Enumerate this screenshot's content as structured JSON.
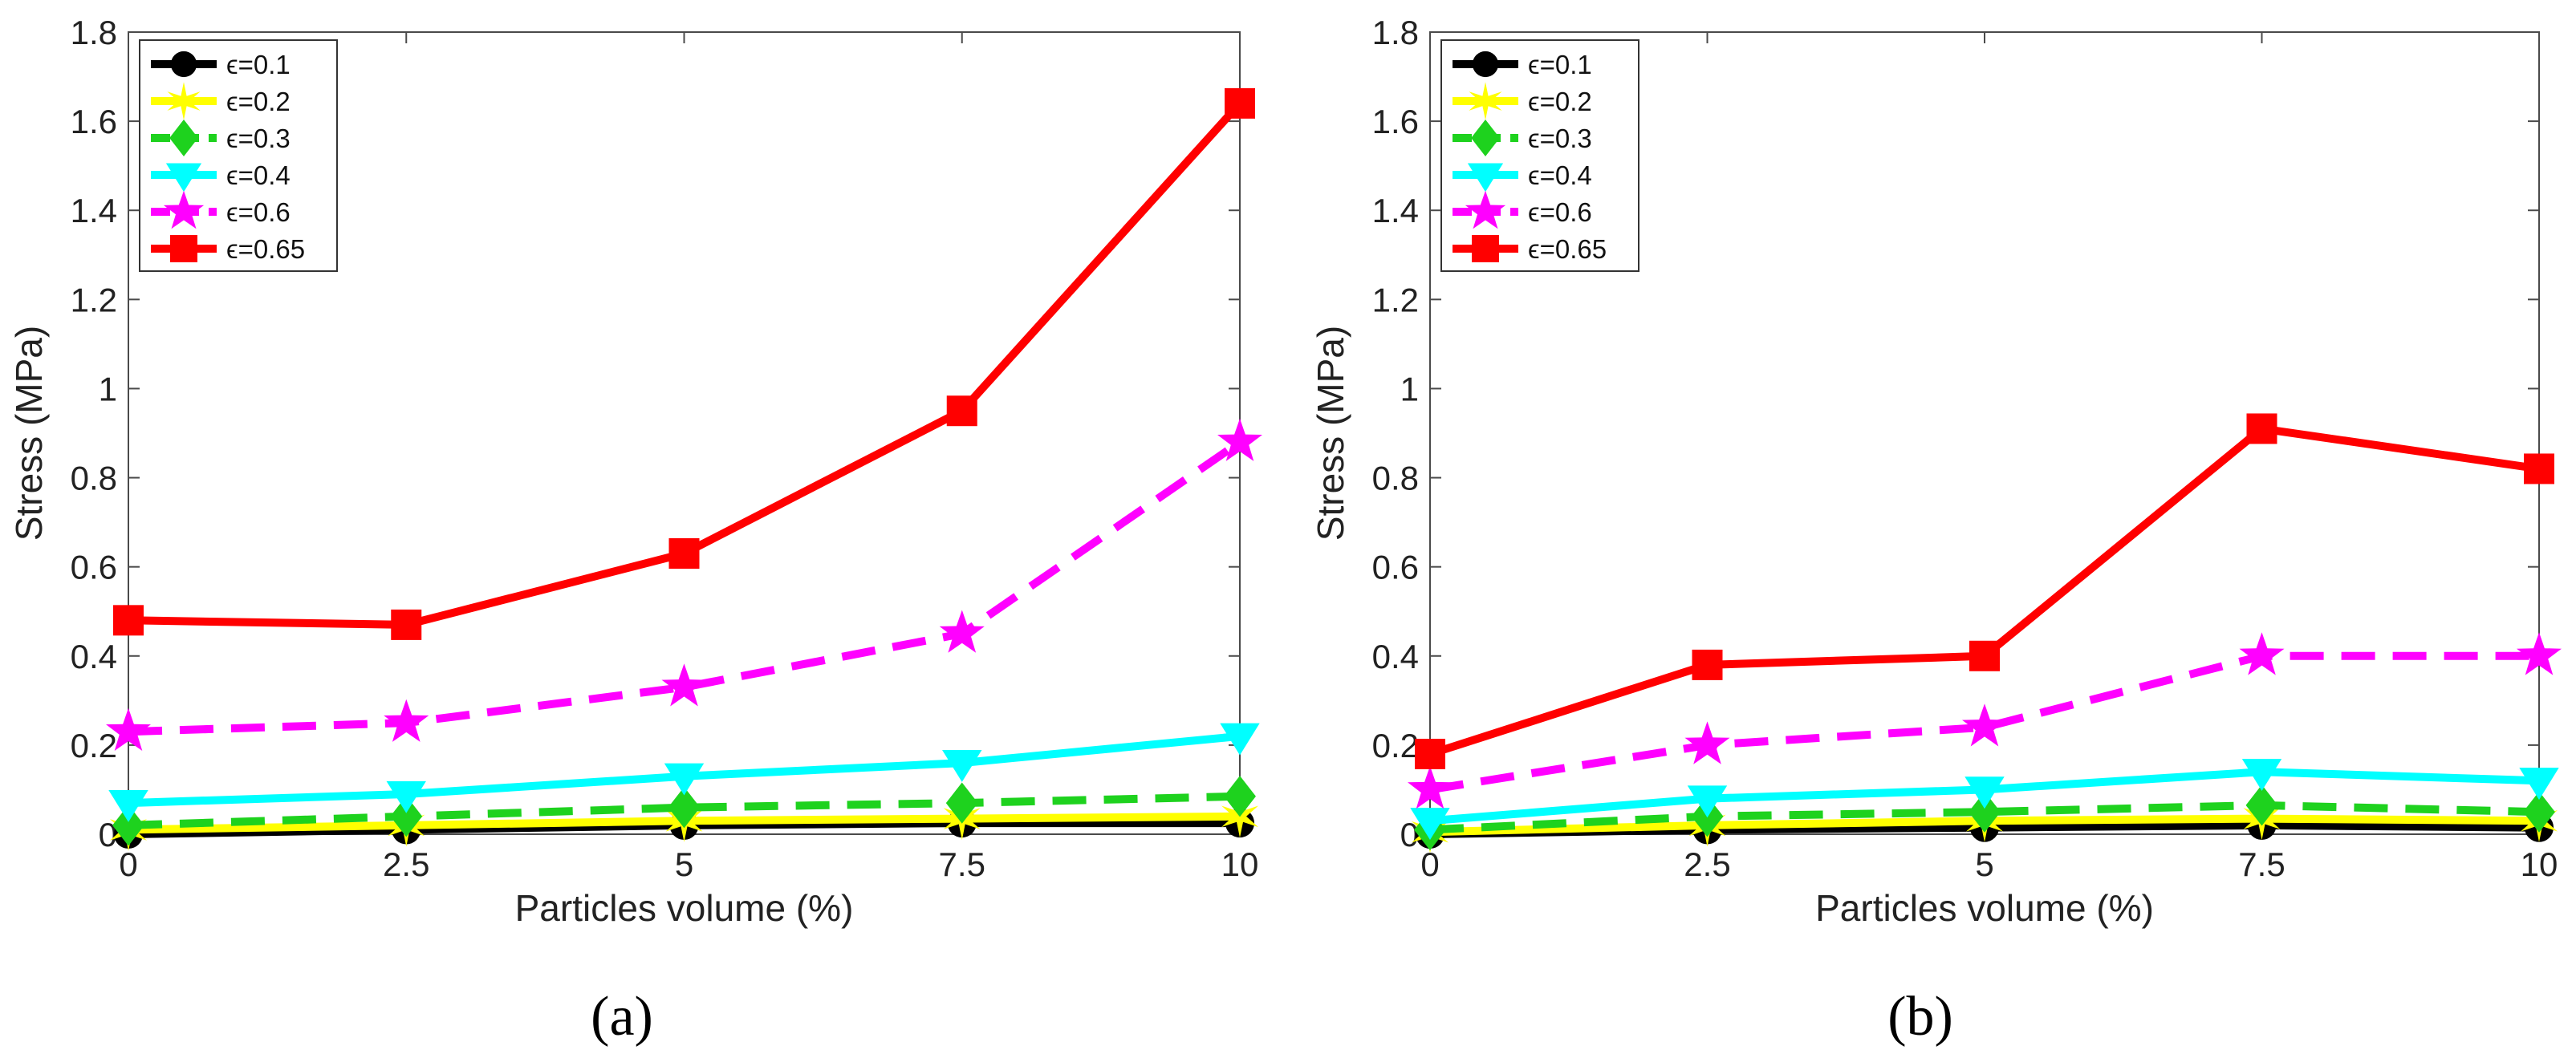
{
  "figure": {
    "captions": [
      "(a)",
      "(b)"
    ]
  },
  "colors": {
    "e01": "#000000",
    "e02": "#ffff00",
    "e03": "#1ed21e",
    "e04": "#00ffff",
    "e06": "#ff00ff",
    "e065": "#ff0000"
  },
  "chart_data": [
    {
      "type": "line",
      "panel": "a",
      "xlabel": "Particles volume (%)",
      "ylabel": "Stress (MPa)",
      "x": [
        0,
        2.5,
        5,
        7.5,
        10
      ],
      "xticks": [
        "0",
        "2.5",
        "5",
        "7.5",
        "10"
      ],
      "yticks": [
        "0",
        "0.2",
        "0.4",
        "0.6",
        "0.8",
        "1",
        "1.2",
        "1.4",
        "1.6",
        "1.8"
      ],
      "xlim": [
        0,
        10
      ],
      "ylim": [
        0,
        1.8
      ],
      "grid": false,
      "legend_position": "top-left",
      "series": [
        {
          "name": "ϵ=0.1",
          "color": "#000000",
          "marker": "circle",
          "dash": "solid",
          "values": [
            0.0,
            0.01,
            0.02,
            0.025,
            0.025
          ]
        },
        {
          "name": "ϵ=0.2",
          "color": "#ffff00",
          "marker": "star",
          "dash": "solid",
          "values": [
            0.01,
            0.02,
            0.03,
            0.035,
            0.04
          ]
        },
        {
          "name": "ϵ=0.3",
          "color": "#1ed21e",
          "marker": "diamond",
          "dash": "dashed",
          "values": [
            0.02,
            0.04,
            0.06,
            0.07,
            0.085
          ]
        },
        {
          "name": "ϵ=0.4",
          "color": "#00ffff",
          "marker": "triangle-down",
          "dash": "solid",
          "values": [
            0.07,
            0.09,
            0.13,
            0.16,
            0.22
          ]
        },
        {
          "name": "ϵ=0.6",
          "color": "#ff00ff",
          "marker": "pentagram",
          "dash": "dashed",
          "values": [
            0.23,
            0.25,
            0.33,
            0.45,
            0.88
          ]
        },
        {
          "name": "ϵ=0.65",
          "color": "#ff0000",
          "marker": "square",
          "dash": "solid",
          "values": [
            0.48,
            0.47,
            0.63,
            0.95,
            1.64
          ]
        }
      ]
    },
    {
      "type": "line",
      "panel": "b",
      "xlabel": "Particles volume (%)",
      "ylabel": "Stress (MPa)",
      "x": [
        0,
        2.5,
        5,
        7.5,
        10
      ],
      "xticks": [
        "0",
        "2.5",
        "5",
        "7.5",
        "10"
      ],
      "yticks": [
        "0",
        "0.2",
        "0.4",
        "0.6",
        "0.8",
        "1",
        "1.2",
        "1.4",
        "1.6",
        "1.8"
      ],
      "xlim": [
        0,
        10
      ],
      "ylim": [
        0,
        1.8
      ],
      "grid": false,
      "legend_position": "top-left",
      "series": [
        {
          "name": "ϵ=0.1",
          "color": "#000000",
          "marker": "circle",
          "dash": "solid",
          "values": [
            0.0,
            0.01,
            0.015,
            0.02,
            0.015
          ]
        },
        {
          "name": "ϵ=0.2",
          "color": "#ffff00",
          "marker": "star",
          "dash": "solid",
          "values": [
            0.005,
            0.02,
            0.03,
            0.035,
            0.03
          ]
        },
        {
          "name": "ϵ=0.3",
          "color": "#1ed21e",
          "marker": "diamond",
          "dash": "dashed",
          "values": [
            0.01,
            0.04,
            0.05,
            0.065,
            0.05
          ]
        },
        {
          "name": "ϵ=0.4",
          "color": "#00ffff",
          "marker": "triangle-down",
          "dash": "solid",
          "values": [
            0.03,
            0.08,
            0.1,
            0.14,
            0.12
          ]
        },
        {
          "name": "ϵ=0.6",
          "color": "#ff00ff",
          "marker": "pentagram",
          "dash": "dashed",
          "values": [
            0.1,
            0.2,
            0.24,
            0.4,
            0.4
          ]
        },
        {
          "name": "ϵ=0.65",
          "color": "#ff0000",
          "marker": "square",
          "dash": "solid",
          "values": [
            0.18,
            0.38,
            0.4,
            0.91,
            0.82
          ]
        }
      ]
    }
  ]
}
